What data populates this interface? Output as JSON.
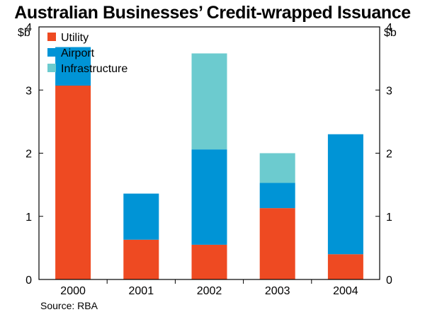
{
  "chart_data": {
    "type": "bar",
    "stacked": true,
    "title": "Australian Businesses’ Credit-wrapped Issuance",
    "y_unit_left": "$b",
    "y_unit_right": "$b",
    "categories": [
      "2000",
      "2001",
      "2002",
      "2003",
      "2004"
    ],
    "ylim": [
      0,
      4
    ],
    "yticks": [
      "0",
      "1",
      "2",
      "3",
      "4"
    ],
    "grid": false,
    "legend_position": "top-left",
    "series": [
      {
        "name": "Utility",
        "color": "#ee4a22",
        "values": [
          3.07,
          0.63,
          0.55,
          1.13,
          0.4
        ]
      },
      {
        "name": "Airport",
        "color": "#0094d6",
        "values": [
          0.61,
          0.73,
          1.51,
          0.4,
          1.9
        ]
      },
      {
        "name": "Infrastructure",
        "color": "#6ccbcf",
        "values": [
          0.0,
          0.0,
          1.52,
          0.47,
          0.0
        ]
      }
    ],
    "source": "Source: RBA"
  }
}
